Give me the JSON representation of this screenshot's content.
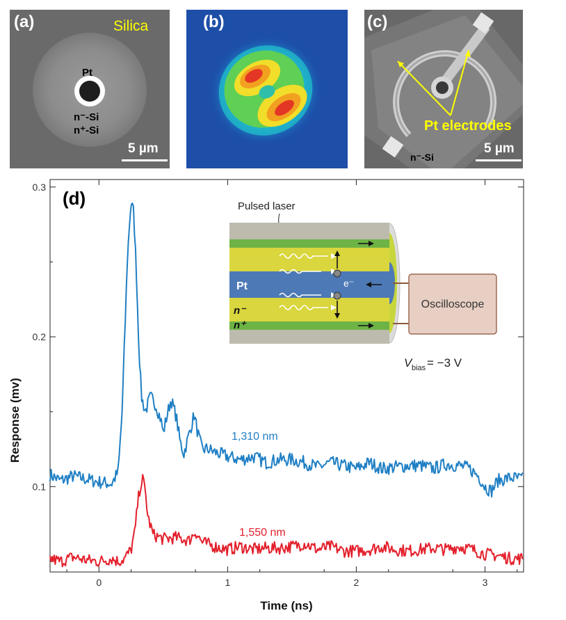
{
  "panels": {
    "a": {
      "label": "(a)",
      "material": "Silica",
      "center_label": "Pt",
      "layer1": "n⁻-Si",
      "layer2": "n⁺-Si",
      "scale": "5 µm"
    },
    "b": {
      "label": "(b)"
    },
    "c": {
      "label": "(c)",
      "callout": "Pt electrodes",
      "material": "n⁻-Si",
      "scale": "5 µm"
    }
  },
  "colors": {
    "blue_series": "#1f7fc4",
    "red_series": "#e3202c",
    "callout": "#ffff00",
    "bmap_bg": "#1d4fa8"
  },
  "inset": {
    "pulsed_laser": "Pulsed laser",
    "pt": "Pt",
    "electron": "e⁻",
    "n_minus": "n⁻",
    "n_plus": "n⁺",
    "oscilloscope": "Oscilloscope",
    "vbias": "V",
    "vbias_sub": "bias",
    "vbias_value": " = −3 V"
  },
  "chart_data": {
    "type": "line",
    "panel_label": "(d)",
    "xlabel": "Time (ns)",
    "ylabel": "Response (mv)",
    "xlim": [
      -0.38,
      3.3
    ],
    "ylim": [
      0.043,
      0.305
    ],
    "xticks": [
      0,
      1,
      2,
      3
    ],
    "yticks": [
      0.1,
      0.2,
      0.3
    ],
    "series": [
      {
        "name": "1,310 nm",
        "color": "#1f7fc4",
        "points": [
          [
            -0.38,
            0.108
          ],
          [
            -0.3,
            0.104
          ],
          [
            -0.2,
            0.107
          ],
          [
            -0.1,
            0.105
          ],
          [
            0.0,
            0.103
          ],
          [
            0.1,
            0.102
          ],
          [
            0.15,
            0.11
          ],
          [
            0.18,
            0.15
          ],
          [
            0.2,
            0.2
          ],
          [
            0.22,
            0.25
          ],
          [
            0.24,
            0.28
          ],
          [
            0.25,
            0.29
          ],
          [
            0.27,
            0.283
          ],
          [
            0.29,
            0.245
          ],
          [
            0.31,
            0.195
          ],
          [
            0.33,
            0.16
          ],
          [
            0.36,
            0.15
          ],
          [
            0.4,
            0.16
          ],
          [
            0.44,
            0.155
          ],
          [
            0.48,
            0.145
          ],
          [
            0.5,
            0.136
          ],
          [
            0.53,
            0.148
          ],
          [
            0.56,
            0.158
          ],
          [
            0.6,
            0.147
          ],
          [
            0.63,
            0.13
          ],
          [
            0.66,
            0.122
          ],
          [
            0.7,
            0.135
          ],
          [
            0.74,
            0.148
          ],
          [
            0.77,
            0.135
          ],
          [
            0.8,
            0.125
          ],
          [
            0.85,
            0.125
          ],
          [
            0.9,
            0.123
          ],
          [
            1.0,
            0.12
          ],
          [
            1.1,
            0.118
          ],
          [
            1.2,
            0.12
          ],
          [
            1.3,
            0.116
          ],
          [
            1.4,
            0.118
          ],
          [
            1.5,
            0.118
          ],
          [
            1.6,
            0.116
          ],
          [
            1.7,
            0.113
          ],
          [
            1.8,
            0.116
          ],
          [
            1.9,
            0.114
          ],
          [
            2.0,
            0.112
          ],
          [
            2.1,
            0.116
          ],
          [
            2.2,
            0.112
          ],
          [
            2.3,
            0.113
          ],
          [
            2.4,
            0.114
          ],
          [
            2.5,
            0.114
          ],
          [
            2.6,
            0.112
          ],
          [
            2.7,
            0.115
          ],
          [
            2.8,
            0.114
          ],
          [
            2.88,
            0.112
          ],
          [
            2.95,
            0.107
          ],
          [
            3.0,
            0.1
          ],
          [
            3.05,
            0.097
          ],
          [
            3.1,
            0.104
          ],
          [
            3.2,
            0.106
          ],
          [
            3.3,
            0.105
          ]
        ]
      },
      {
        "name": "1,550 nm",
        "color": "#e3202c",
        "points": [
          [
            -0.38,
            0.052
          ],
          [
            -0.3,
            0.05
          ],
          [
            -0.2,
            0.053
          ],
          [
            -0.1,
            0.051
          ],
          [
            0.0,
            0.05
          ],
          [
            0.1,
            0.052
          ],
          [
            0.15,
            0.05
          ],
          [
            0.2,
            0.052
          ],
          [
            0.25,
            0.058
          ],
          [
            0.28,
            0.07
          ],
          [
            0.3,
            0.088
          ],
          [
            0.32,
            0.1
          ],
          [
            0.34,
            0.105
          ],
          [
            0.36,
            0.097
          ],
          [
            0.38,
            0.08
          ],
          [
            0.42,
            0.068
          ],
          [
            0.5,
            0.065
          ],
          [
            0.6,
            0.066
          ],
          [
            0.7,
            0.064
          ],
          [
            0.75,
            0.07
          ],
          [
            0.8,
            0.063
          ],
          [
            0.9,
            0.06
          ],
          [
            1.0,
            0.058
          ],
          [
            1.1,
            0.06
          ],
          [
            1.2,
            0.058
          ],
          [
            1.3,
            0.059
          ],
          [
            1.4,
            0.059
          ],
          [
            1.5,
            0.06
          ],
          [
            1.6,
            0.062
          ],
          [
            1.7,
            0.058
          ],
          [
            1.8,
            0.06
          ],
          [
            1.9,
            0.057
          ],
          [
            2.0,
            0.057
          ],
          [
            2.1,
            0.058
          ],
          [
            2.2,
            0.06
          ],
          [
            2.3,
            0.058
          ],
          [
            2.4,
            0.057
          ],
          [
            2.5,
            0.058
          ],
          [
            2.6,
            0.059
          ],
          [
            2.7,
            0.058
          ],
          [
            2.8,
            0.06
          ],
          [
            2.9,
            0.058
          ],
          [
            3.0,
            0.055
          ],
          [
            3.1,
            0.054
          ],
          [
            3.2,
            0.052
          ],
          [
            3.3,
            0.052
          ]
        ]
      }
    ]
  }
}
